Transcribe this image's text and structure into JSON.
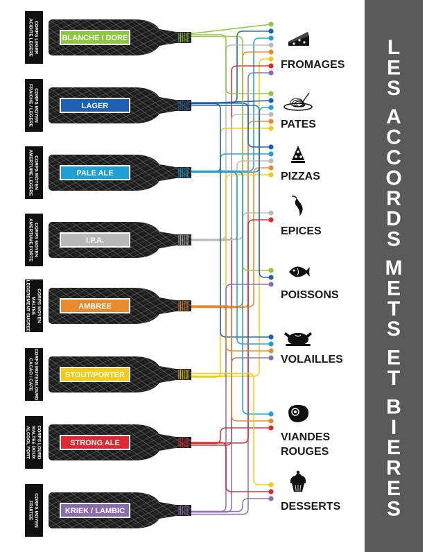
{
  "title": "LES ACCORDS METS ET BIERES",
  "colors": {
    "blanche": "#8dc63f",
    "lager": "#1d5fb0",
    "pale_ale": "#1e9fd6",
    "ipa": "#b8b8b8",
    "ambree": "#e8892b",
    "stout": "#f3cb12",
    "strong": "#e0262f",
    "kriek": "#8b6bb0",
    "title_bar": "#5a5a5a"
  },
  "beers": [
    {
      "id": "blanche",
      "label": "BLANCHE / DORE",
      "color": "#8dc63f",
      "desc": [
        "CORPS LEGER",
        "ACIDITE LEGERE"
      ]
    },
    {
      "id": "lager",
      "label": "LAGER",
      "color": "#1d5fb0",
      "desc": [
        "CORPS MOYEN",
        "FRAICHE / LEGERE"
      ]
    },
    {
      "id": "pale_ale",
      "label": "PALE ALE",
      "color": "#1e9fd6",
      "desc": [
        "CORPS MOYEN",
        "AMERTUME LEGERE"
      ]
    },
    {
      "id": "ipa",
      "label": "I.P.A.",
      "color": "#b8b8b8",
      "desc": [
        "CORPS MOYEN",
        "AMERTUME FORTE"
      ]
    },
    {
      "id": "ambree",
      "label": "AMBREE",
      "color": "#e8892b",
      "desc": [
        "CORPS MOYEN",
        "MALTEE",
        "LEGEREMENT SUCREE"
      ]
    },
    {
      "id": "stout",
      "label": "STOUT/PORTER",
      "color": "#f3cb12",
      "desc": [
        "CORPS MOYEN/LOURD",
        "CACAO / CAFE"
      ]
    },
    {
      "id": "strong",
      "label": "STRONG ALE",
      "color": "#e0262f",
      "desc": [
        "CORPS LOURD",
        "MALTEE DOUX",
        "ALCOOL FORT"
      ]
    },
    {
      "id": "kriek",
      "label": "KRIEK / LAMBIC",
      "color": "#8b6bb0",
      "desc": [
        "CORPS MOYEN",
        "FRUITEE"
      ]
    }
  ],
  "foods": [
    {
      "id": "fromages",
      "label": [
        "FROMAGES"
      ],
      "icon": "cheese-icon",
      "beers": [
        "blanche",
        "lager",
        "pale_ale",
        "ipa",
        "ambree",
        "stout",
        "strong",
        "kriek"
      ]
    },
    {
      "id": "pates",
      "label": [
        "PATES"
      ],
      "icon": "pasta-icon",
      "beers": [
        "blanche",
        "lager",
        "pale_ale",
        "ipa",
        "ambree",
        "stout"
      ]
    },
    {
      "id": "pizzas",
      "label": [
        "PIZZAS"
      ],
      "icon": "pizza-icon",
      "beers": [
        "lager",
        "pale_ale",
        "ipa",
        "ambree",
        "stout"
      ]
    },
    {
      "id": "epices",
      "label": [
        "EPICES"
      ],
      "icon": "chili-icon",
      "beers": [
        "ipa",
        "strong"
      ]
    },
    {
      "id": "poissons",
      "label": [
        "POISSONS"
      ],
      "icon": "fish-icon",
      "beers": [
        "blanche",
        "lager",
        "kriek"
      ]
    },
    {
      "id": "volailles",
      "label": [
        "VOLAILLES"
      ],
      "icon": "chicken-icon",
      "beers": [
        "lager",
        "pale_ale",
        "ambree",
        "kriek"
      ]
    },
    {
      "id": "viandes",
      "label": [
        "VIANDES",
        "ROUGES"
      ],
      "icon": "steak-icon",
      "beers": [
        "pale_ale",
        "ambree",
        "strong"
      ]
    },
    {
      "id": "desserts",
      "label": [
        "DESSERTS"
      ],
      "icon": "cupcake-icon",
      "beers": [
        "stout",
        "strong",
        "kriek"
      ]
    }
  ]
}
